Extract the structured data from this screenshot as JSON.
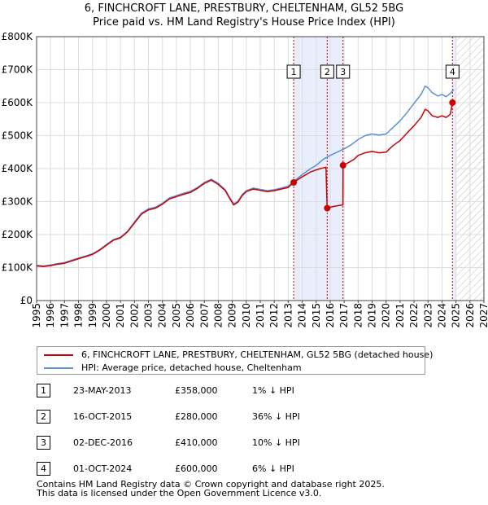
{
  "chart_data": {
    "type": "line",
    "title": "6, FINCHCROFT LANE, PRESTBURY, CHELTENHAM, GL52 5BG",
    "subtitle": "Price paid vs. HM Land Registry's House Price Index (HPI)",
    "xlim": [
      1995,
      2027
    ],
    "ylim": [
      0,
      800000
    ],
    "x_ticks": [
      "1995",
      "1996",
      "1997",
      "1998",
      "1999",
      "2000",
      "2001",
      "2002",
      "2003",
      "2004",
      "2005",
      "2006",
      "2007",
      "2008",
      "2009",
      "2010",
      "2011",
      "2012",
      "2013",
      "2014",
      "2015",
      "2016",
      "2017",
      "2018",
      "2019",
      "2020",
      "2021",
      "2022",
      "2023",
      "2024",
      "2025",
      "2026",
      "2027"
    ],
    "y_ticks": [
      {
        "value": 0,
        "label": "£0"
      },
      {
        "value": 100000,
        "label": "£100K"
      },
      {
        "value": 200000,
        "label": "£200K"
      },
      {
        "value": 300000,
        "label": "£300K"
      },
      {
        "value": 400000,
        "label": "£400K"
      },
      {
        "value": 500000,
        "label": "£500K"
      },
      {
        "value": 600000,
        "label": "£600K"
      },
      {
        "value": 700000,
        "label": "£700K"
      },
      {
        "value": 800000,
        "label": "£800K"
      }
    ],
    "forecast_start": 2025.0,
    "shaded_ranges": [
      [
        2013.39,
        2016.92
      ],
      [
        2024.75,
        2025.0
      ]
    ],
    "series": [
      {
        "name": "6, FINCHCROFT LANE, PRESTBURY, CHELTENHAM, GL52 5BG (detached house)",
        "color": "#cc0000",
        "points": [
          [
            1995.0,
            105000
          ],
          [
            1995.5,
            103000
          ],
          [
            1996.0,
            106000
          ],
          [
            1996.5,
            110000
          ],
          [
            1997.0,
            113000
          ],
          [
            1997.5,
            120000
          ],
          [
            1998.0,
            127000
          ],
          [
            1998.5,
            133000
          ],
          [
            1999.0,
            140000
          ],
          [
            1999.5,
            152000
          ],
          [
            2000.0,
            168000
          ],
          [
            2000.5,
            183000
          ],
          [
            2001.0,
            190000
          ],
          [
            2001.5,
            208000
          ],
          [
            2002.0,
            235000
          ],
          [
            2002.5,
            262000
          ],
          [
            2003.0,
            275000
          ],
          [
            2003.5,
            280000
          ],
          [
            2004.0,
            292000
          ],
          [
            2004.5,
            308000
          ],
          [
            2005.0,
            315000
          ],
          [
            2005.5,
            322000
          ],
          [
            2006.0,
            328000
          ],
          [
            2006.5,
            340000
          ],
          [
            2007.0,
            355000
          ],
          [
            2007.5,
            365000
          ],
          [
            2008.0,
            352000
          ],
          [
            2008.5,
            333000
          ],
          [
            2008.8,
            310000
          ],
          [
            2009.1,
            290000
          ],
          [
            2009.4,
            298000
          ],
          [
            2009.7,
            318000
          ],
          [
            2010.0,
            330000
          ],
          [
            2010.5,
            338000
          ],
          [
            2011.0,
            334000
          ],
          [
            2011.5,
            330000
          ],
          [
            2012.0,
            333000
          ],
          [
            2012.5,
            338000
          ],
          [
            2013.0,
            343000
          ],
          [
            2013.39,
            358000
          ],
          [
            2013.8,
            370000
          ],
          [
            2014.2,
            380000
          ],
          [
            2014.6,
            390000
          ],
          [
            2015.0,
            396000
          ],
          [
            2015.3,
            400000
          ],
          [
            2015.5,
            402000
          ],
          [
            2015.7,
            404000
          ],
          [
            2015.78,
            280000
          ],
          [
            2016.2,
            285000
          ],
          [
            2016.6,
            288000
          ],
          [
            2016.91,
            290000
          ],
          [
            2016.92,
            410000
          ],
          [
            2017.3,
            418000
          ],
          [
            2017.7,
            428000
          ],
          [
            2018.0,
            440000
          ],
          [
            2018.5,
            448000
          ],
          [
            2019.0,
            452000
          ],
          [
            2019.5,
            448000
          ],
          [
            2020.0,
            450000
          ],
          [
            2020.5,
            470000
          ],
          [
            2021.0,
            485000
          ],
          [
            2021.5,
            508000
          ],
          [
            2022.0,
            530000
          ],
          [
            2022.5,
            555000
          ],
          [
            2022.8,
            580000
          ],
          [
            2023.0,
            575000
          ],
          [
            2023.3,
            560000
          ],
          [
            2023.7,
            555000
          ],
          [
            2024.0,
            560000
          ],
          [
            2024.3,
            555000
          ],
          [
            2024.6,
            565000
          ],
          [
            2024.75,
            600000
          ],
          [
            2024.85,
            608000
          ]
        ]
      },
      {
        "name": "HPI: Average price, detached house, Cheltenham",
        "color": "#5b8fd6",
        "points": [
          [
            1995.0,
            107000
          ],
          [
            1995.5,
            105000
          ],
          [
            1996.0,
            108000
          ],
          [
            1996.5,
            112000
          ],
          [
            1997.0,
            115000
          ],
          [
            1997.5,
            122000
          ],
          [
            1998.0,
            129000
          ],
          [
            1998.5,
            135000
          ],
          [
            1999.0,
            142000
          ],
          [
            1999.5,
            154000
          ],
          [
            2000.0,
            170000
          ],
          [
            2000.5,
            185000
          ],
          [
            2001.0,
            192000
          ],
          [
            2001.5,
            210000
          ],
          [
            2002.0,
            238000
          ],
          [
            2002.5,
            265000
          ],
          [
            2003.0,
            278000
          ],
          [
            2003.5,
            283000
          ],
          [
            2004.0,
            295000
          ],
          [
            2004.5,
            311000
          ],
          [
            2005.0,
            318000
          ],
          [
            2005.5,
            325000
          ],
          [
            2006.0,
            331000
          ],
          [
            2006.5,
            343000
          ],
          [
            2007.0,
            358000
          ],
          [
            2007.5,
            368000
          ],
          [
            2008.0,
            355000
          ],
          [
            2008.5,
            336000
          ],
          [
            2008.8,
            313000
          ],
          [
            2009.1,
            293000
          ],
          [
            2009.4,
            301000
          ],
          [
            2009.7,
            321000
          ],
          [
            2010.0,
            333000
          ],
          [
            2010.5,
            341000
          ],
          [
            2011.0,
            337000
          ],
          [
            2011.5,
            333000
          ],
          [
            2012.0,
            336000
          ],
          [
            2012.5,
            341000
          ],
          [
            2013.0,
            347000
          ],
          [
            2013.39,
            361000
          ],
          [
            2013.8,
            375000
          ],
          [
            2014.2,
            388000
          ],
          [
            2014.6,
            400000
          ],
          [
            2015.0,
            410000
          ],
          [
            2015.5,
            428000
          ],
          [
            2016.0,
            440000
          ],
          [
            2016.5,
            450000
          ],
          [
            2017.0,
            460000
          ],
          [
            2017.5,
            472000
          ],
          [
            2018.0,
            488000
          ],
          [
            2018.5,
            500000
          ],
          [
            2019.0,
            505000
          ],
          [
            2019.5,
            502000
          ],
          [
            2020.0,
            505000
          ],
          [
            2020.5,
            525000
          ],
          [
            2021.0,
            545000
          ],
          [
            2021.5,
            570000
          ],
          [
            2022.0,
            598000
          ],
          [
            2022.5,
            625000
          ],
          [
            2022.8,
            650000
          ],
          [
            2023.0,
            645000
          ],
          [
            2023.3,
            630000
          ],
          [
            2023.7,
            620000
          ],
          [
            2024.0,
            625000
          ],
          [
            2024.3,
            618000
          ],
          [
            2024.6,
            628000
          ],
          [
            2024.75,
            635000
          ],
          [
            2024.85,
            640000
          ]
        ]
      }
    ],
    "markers": [
      {
        "label": "1",
        "x": 2013.39,
        "y": 358000
      },
      {
        "label": "2",
        "x": 2015.79,
        "y": 280000
      },
      {
        "label": "3",
        "x": 2016.92,
        "y": 410000
      },
      {
        "label": "4",
        "x": 2024.75,
        "y": 600000
      }
    ]
  },
  "legend": {
    "property_label": "6, FINCHCROFT LANE, PRESTBURY, CHELTENHAM, GL52 5BG (detached house)",
    "hpi_label": "HPI: Average price, detached house, Cheltenham"
  },
  "transactions": [
    {
      "num": "1",
      "date": "23-MAY-2013",
      "price": "£358,000",
      "diff": "1% ↓ HPI"
    },
    {
      "num": "2",
      "date": "16-OCT-2015",
      "price": "£280,000",
      "diff": "36% ↓ HPI"
    },
    {
      "num": "3",
      "date": "02-DEC-2016",
      "price": "£410,000",
      "diff": "10% ↓ HPI"
    },
    {
      "num": "4",
      "date": "01-OCT-2024",
      "price": "£600,000",
      "diff": "6% ↓ HPI"
    }
  ],
  "footer": {
    "line1": "Contains HM Land Registry data © Crown copyright and database right 2025.",
    "line2": "This data is licensed under the Open Government Licence v3.0."
  },
  "colors": {
    "property": "#cc0000",
    "hpi": "#5b8fd6",
    "grid": "#dddddd",
    "shade": "#e8eefb"
  }
}
